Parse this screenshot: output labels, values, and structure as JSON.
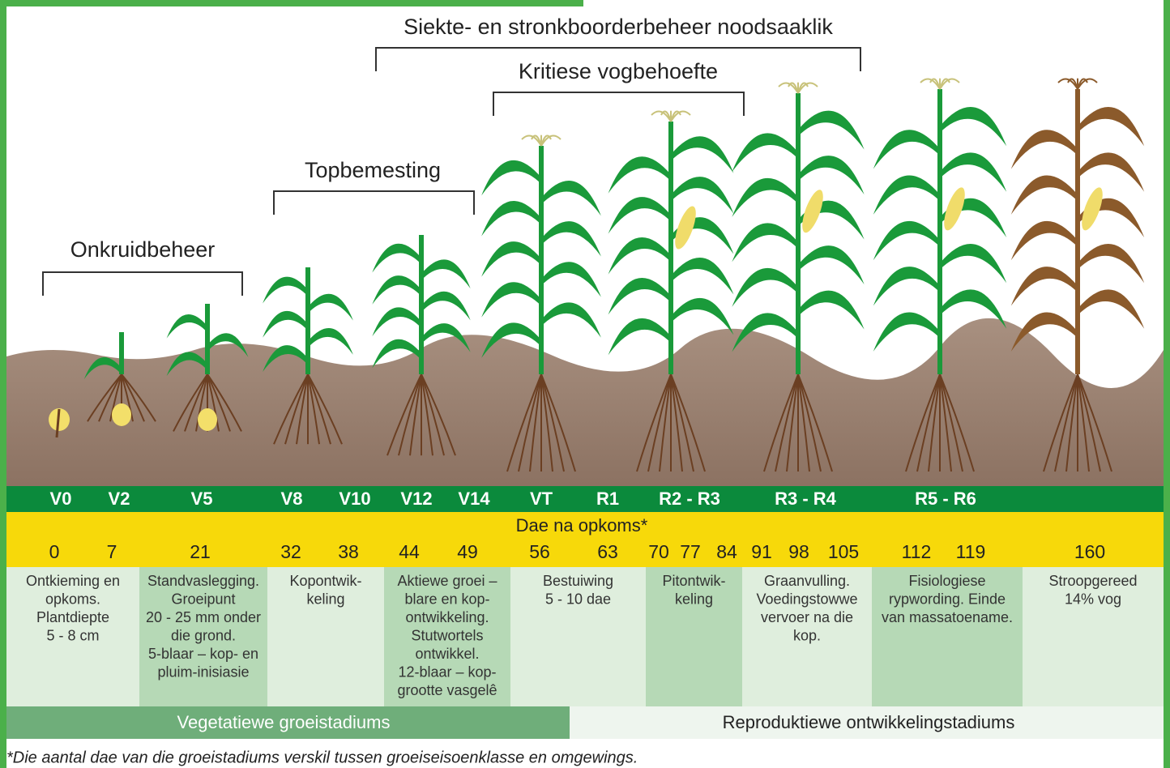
{
  "brackets": [
    {
      "label": "Onkruidbeheer"
    },
    {
      "label": "Topbemesting"
    },
    {
      "label": "Kritiese vogbehoefte"
    },
    {
      "label": "Siekte- en stronkboorderbeheer noodsaaklik"
    }
  ],
  "stages": [
    "V0",
    "V2",
    "V5",
    "V8",
    "V10",
    "V12",
    "V14",
    "VT",
    "R1",
    "R2 - R3",
    "R3 - R4",
    "R5 - R6"
  ],
  "days_title": "Dae na opkoms*",
  "days": [
    "0",
    "7",
    "21",
    "32",
    "38",
    "44",
    "49",
    "56",
    "63",
    "70",
    "77",
    "84",
    "91",
    "98",
    "105",
    "112",
    "119",
    "160"
  ],
  "descriptions": [
    {
      "lines": [
        "Ontkieming en",
        "opkoms.",
        "Plantdiepte",
        "5 - 8 cm"
      ]
    },
    {
      "lines": [
        "Standvaslegging.",
        "Groeipunt",
        "20 - 25 mm onder",
        "die grond.",
        "5-blaar – kop- en",
        "pluim-inisiasie"
      ]
    },
    {
      "lines": [
        "Kopontwik-",
        "keling"
      ]
    },
    {
      "lines": [
        "Aktiewe groei –",
        "blare en kop-",
        "ontwikkeling.",
        "Stutwortels",
        "ontwikkel.",
        "12-blaar – kop-",
        "grootte vasgelê"
      ]
    },
    {
      "lines": [
        "Bestuiwing",
        "5 - 10 dae"
      ]
    },
    {
      "lines": [
        "Pitontwik-",
        "keling"
      ]
    },
    {
      "lines": [
        "Graanvulling.",
        "Voedingstowwe",
        "vervoer na die",
        "kop."
      ]
    },
    {
      "lines": [
        "Fisiologiese",
        "rypwording. Einde",
        "van massatoename."
      ]
    },
    {
      "lines": [
        "Stroopgereed",
        "14% vog"
      ]
    }
  ],
  "phases": [
    "Vegetatiewe groeistadiums",
    "Reproduktiewe ontwikkelingstadiums"
  ],
  "footnote": "*Die aantal dae van die groeistadiums verskil tussen groeiseisoenklasse en omgewings."
}
